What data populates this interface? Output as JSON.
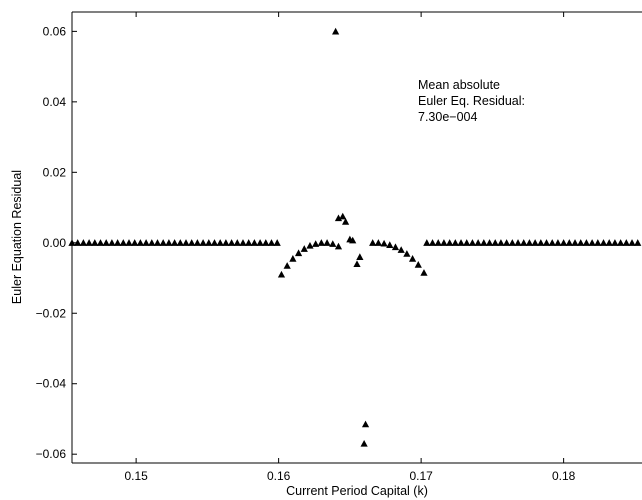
{
  "chart_data": {
    "type": "scatter",
    "title": "",
    "xlabel": "Current Period Capital (k)",
    "ylabel": "Euler Equation Residual",
    "xlim": [
      0.1455,
      0.1855
    ],
    "ylim": [
      -0.0625,
      0.0655
    ],
    "x_ticks": [
      0.15,
      0.16,
      0.17,
      0.18
    ],
    "x_tick_labels": [
      "0.15",
      "0.16",
      "0.17",
      "0.18"
    ],
    "y_ticks": [
      -0.06,
      -0.04,
      -0.02,
      0.0,
      0.02,
      0.04,
      0.06
    ],
    "y_tick_labels": [
      "−0.06",
      "−0.04",
      "−0.02",
      "0.00",
      "0.02",
      "0.04",
      "0.06"
    ],
    "grid": false,
    "legend": null,
    "marker": "triangle",
    "marker_color": "#000000",
    "annotation": {
      "lines": [
        "Mean absolute",
        "Euler Eq. Residual:",
        "7.30e−004"
      ]
    },
    "series": [
      {
        "points": [
          [
            0.1455,
            0.0
          ],
          [
            0.1459,
            0.0
          ],
          [
            0.1463,
            0.0
          ],
          [
            0.1467,
            0.0
          ],
          [
            0.1471,
            0.0
          ],
          [
            0.1475,
            0.0
          ],
          [
            0.1479,
            0.0
          ],
          [
            0.1483,
            0.0
          ],
          [
            0.1487,
            0.0
          ],
          [
            0.1491,
            0.0
          ],
          [
            0.1495,
            0.0
          ],
          [
            0.1499,
            0.0
          ],
          [
            0.1503,
            0.0
          ],
          [
            0.1507,
            0.0
          ],
          [
            0.1511,
            0.0
          ],
          [
            0.1515,
            0.0
          ],
          [
            0.1519,
            0.0
          ],
          [
            0.1523,
            0.0
          ],
          [
            0.1527,
            0.0
          ],
          [
            0.1531,
            0.0
          ],
          [
            0.1535,
            0.0
          ],
          [
            0.1539,
            0.0
          ],
          [
            0.1543,
            0.0
          ],
          [
            0.1547,
            0.0
          ],
          [
            0.1551,
            0.0
          ],
          [
            0.1555,
            0.0
          ],
          [
            0.1559,
            0.0
          ],
          [
            0.1563,
            0.0
          ],
          [
            0.1567,
            0.0
          ],
          [
            0.1571,
            0.0
          ],
          [
            0.1575,
            0.0
          ],
          [
            0.1579,
            0.0
          ],
          [
            0.1583,
            0.0
          ],
          [
            0.1587,
            0.0
          ],
          [
            0.1591,
            0.0
          ],
          [
            0.1595,
            0.0
          ],
          [
            0.1599,
            0.0
          ],
          [
            0.1602,
            -0.009
          ],
          [
            0.1606,
            -0.0065
          ],
          [
            0.161,
            -0.0045
          ],
          [
            0.1614,
            -0.0029
          ],
          [
            0.1618,
            -0.0017
          ],
          [
            0.1622,
            -0.0008
          ],
          [
            0.1626,
            -0.0003
          ],
          [
            0.163,
            0.0
          ],
          [
            0.1634,
            0.0
          ],
          [
            0.1638,
            -0.0003
          ],
          [
            0.1642,
            -0.001
          ],
          [
            0.164,
            0.06
          ],
          [
            0.1642,
            0.007
          ],
          [
            0.1645,
            0.0075
          ],
          [
            0.1647,
            0.006
          ],
          [
            0.165,
            0.001
          ],
          [
            0.1652,
            0.0007
          ],
          [
            0.1655,
            -0.006
          ],
          [
            0.1657,
            -0.004
          ],
          [
            0.166,
            -0.057
          ],
          [
            0.1661,
            -0.0515
          ],
          [
            0.1666,
            0.0
          ],
          [
            0.167,
            0.0
          ],
          [
            0.1674,
            -0.0002
          ],
          [
            0.1678,
            -0.0006
          ],
          [
            0.1682,
            -0.0012
          ],
          [
            0.1686,
            -0.002
          ],
          [
            0.169,
            -0.0031
          ],
          [
            0.1694,
            -0.0045
          ],
          [
            0.1698,
            -0.0062
          ],
          [
            0.1702,
            -0.0085
          ],
          [
            0.1704,
            0.0
          ],
          [
            0.1708,
            0.0
          ],
          [
            0.1712,
            0.0
          ],
          [
            0.1716,
            0.0
          ],
          [
            0.172,
            0.0
          ],
          [
            0.1724,
            0.0
          ],
          [
            0.1728,
            0.0
          ],
          [
            0.1732,
            0.0
          ],
          [
            0.1736,
            0.0
          ],
          [
            0.174,
            0.0
          ],
          [
            0.1744,
            0.0
          ],
          [
            0.1748,
            0.0
          ],
          [
            0.1752,
            0.0
          ],
          [
            0.1756,
            0.0
          ],
          [
            0.176,
            0.0
          ],
          [
            0.1764,
            0.0
          ],
          [
            0.1768,
            0.0
          ],
          [
            0.1772,
            0.0
          ],
          [
            0.1776,
            0.0
          ],
          [
            0.178,
            0.0
          ],
          [
            0.1784,
            0.0
          ],
          [
            0.1788,
            0.0
          ],
          [
            0.1792,
            0.0
          ],
          [
            0.1796,
            0.0
          ],
          [
            0.18,
            0.0
          ],
          [
            0.1804,
            0.0
          ],
          [
            0.1808,
            0.0
          ],
          [
            0.1812,
            0.0
          ],
          [
            0.1816,
            0.0
          ],
          [
            0.182,
            0.0
          ],
          [
            0.1824,
            0.0
          ],
          [
            0.1828,
            0.0
          ],
          [
            0.1832,
            0.0
          ],
          [
            0.1836,
            0.0
          ],
          [
            0.184,
            0.0
          ],
          [
            0.1844,
            0.0
          ],
          [
            0.1848,
            0.0
          ],
          [
            0.1852,
            0.0
          ]
        ]
      }
    ]
  }
}
